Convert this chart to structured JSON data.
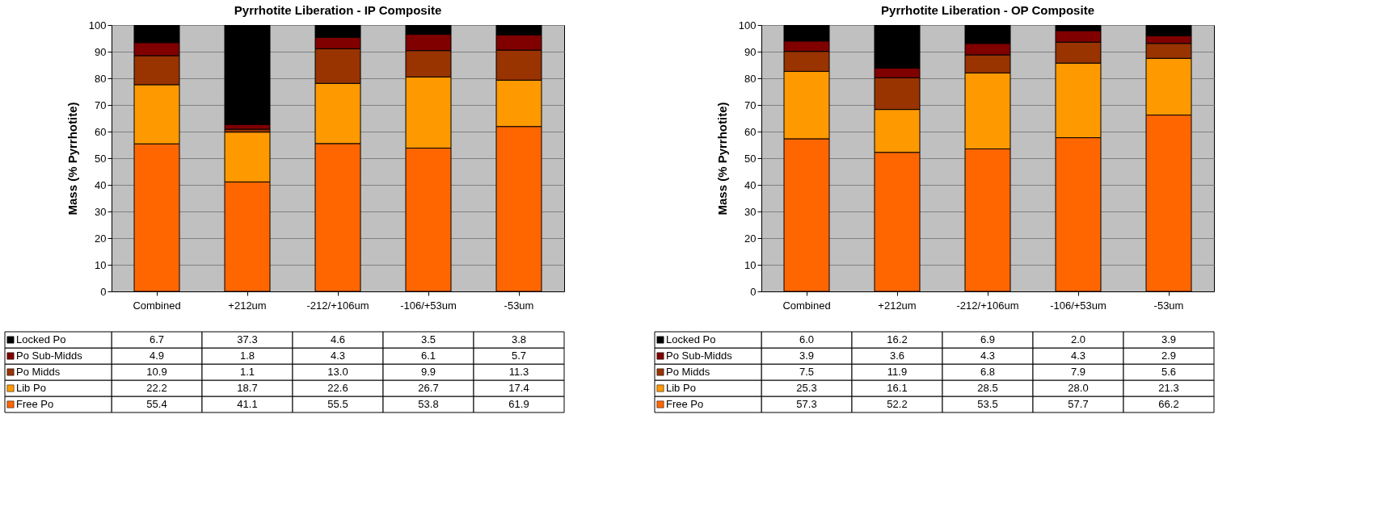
{
  "chart_data": [
    {
      "type": "bar",
      "stacked": true,
      "title": "Pyrrhotite Liberation - IP Composite",
      "ylabel": "Mass (% Pyrrhotite)",
      "categories": [
        "Combined",
        "+212um",
        "-212/+106um",
        "-106/+53um",
        "-53um"
      ],
      "ylim": [
        0,
        100
      ],
      "yticks": [
        0,
        10,
        20,
        30,
        40,
        50,
        60,
        70,
        80,
        90,
        100
      ],
      "grid": "y",
      "legend": "bottom",
      "series": [
        {
          "name": "Free Po",
          "color": "#ff6600",
          "values": [
            55.4,
            41.1,
            55.5,
            53.8,
            61.9
          ],
          "value_labels": [
            "55.4",
            "41.1",
            "55.5",
            "53.8",
            "61.9"
          ]
        },
        {
          "name": "Lib Po",
          "color": "#ff9900",
          "values": [
            22.2,
            18.7,
            22.6,
            26.7,
            17.4
          ],
          "value_labels": [
            "22.2",
            "18.7",
            "22.6",
            "26.7",
            "17.4"
          ]
        },
        {
          "name": "Po Midds",
          "color": "#993300",
          "values": [
            10.9,
            1.1,
            13.0,
            9.9,
            11.3
          ],
          "value_labels": [
            "10.9",
            "1.1",
            "13.0",
            "9.9",
            "11.3"
          ]
        },
        {
          "name": "Po Sub-Midds",
          "color": "#800000",
          "values": [
            4.9,
            1.8,
            4.3,
            6.1,
            5.7
          ],
          "value_labels": [
            "4.9",
            "1.8",
            "4.3",
            "6.1",
            "5.7"
          ]
        },
        {
          "name": "Locked Po",
          "color": "#000000",
          "values": [
            6.7,
            37.3,
            4.6,
            3.5,
            3.8
          ],
          "value_labels": [
            "6.7",
            "37.3",
            "4.6",
            "3.5",
            "3.8"
          ]
        }
      ]
    },
    {
      "type": "bar",
      "stacked": true,
      "title": "Pyrrhotite Liberation - OP Composite",
      "ylabel": "Mass (% Pyrrhotite)",
      "categories": [
        "Combined",
        "+212um",
        "-212/+106um",
        "-106/+53um",
        "-53um"
      ],
      "ylim": [
        0,
        100
      ],
      "yticks": [
        0,
        10,
        20,
        30,
        40,
        50,
        60,
        70,
        80,
        90,
        100
      ],
      "grid": "y",
      "legend": "bottom",
      "series": [
        {
          "name": "Free Po",
          "color": "#ff6600",
          "values": [
            57.3,
            52.2,
            53.5,
            57.7,
            66.2
          ],
          "value_labels": [
            "57.3",
            "52.2",
            "53.5",
            "57.7",
            "66.2"
          ]
        },
        {
          "name": "Lib Po",
          "color": "#ff9900",
          "values": [
            25.3,
            16.1,
            28.5,
            28.0,
            21.3
          ],
          "value_labels": [
            "25.3",
            "16.1",
            "28.5",
            "28.0",
            "21.3"
          ]
        },
        {
          "name": "Po Midds",
          "color": "#993300",
          "values": [
            7.5,
            11.9,
            6.8,
            7.9,
            5.6
          ],
          "value_labels": [
            "7.5",
            "11.9",
            "6.8",
            "7.9",
            "5.6"
          ]
        },
        {
          "name": "Po Sub-Midds",
          "color": "#800000",
          "values": [
            3.9,
            3.6,
            4.3,
            4.3,
            2.9
          ],
          "value_labels": [
            "3.9",
            "3.6",
            "4.3",
            "4.3",
            "2.9"
          ]
        },
        {
          "name": "Locked Po",
          "color": "#000000",
          "values": [
            6.0,
            16.2,
            6.9,
            2.0,
            3.9
          ],
          "value_labels": [
            "6.0",
            "16.2",
            "6.9",
            "2.0",
            "3.9"
          ]
        }
      ]
    }
  ]
}
